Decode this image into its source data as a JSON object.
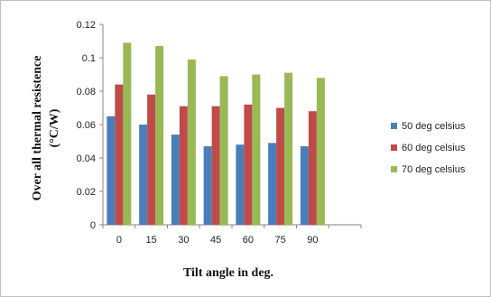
{
  "chart_data": {
    "type": "bar",
    "title": "",
    "xlabel": "Tilt angle in deg.",
    "ylabel_line1": "Over all thermal resistence",
    "ylabel_line2": "(°C/W)",
    "categories": [
      "0",
      "15",
      "30",
      "45",
      "60",
      "75",
      "90"
    ],
    "ylim": [
      0,
      0.12
    ],
    "yticks": [
      0,
      0.02,
      0.04,
      0.06,
      0.08,
      0.1,
      0.12
    ],
    "ytick_labels": [
      "0",
      "0.02",
      "0.04",
      "0.06",
      "0.08",
      "0.1",
      "0.12"
    ],
    "grid": false,
    "legend_position": "right",
    "series": [
      {
        "name": "50 deg celsius",
        "color": "#4a7ebb",
        "values": [
          0.065,
          0.06,
          0.054,
          0.047,
          0.048,
          0.049,
          0.047
        ]
      },
      {
        "name": "60 deg celsius",
        "color": "#be4b48",
        "values": [
          0.084,
          0.078,
          0.071,
          0.071,
          0.072,
          0.07,
          0.068
        ]
      },
      {
        "name": "70 deg celsius",
        "color": "#98b954",
        "values": [
          0.109,
          0.107,
          0.099,
          0.089,
          0.09,
          0.091,
          0.088
        ]
      }
    ]
  }
}
